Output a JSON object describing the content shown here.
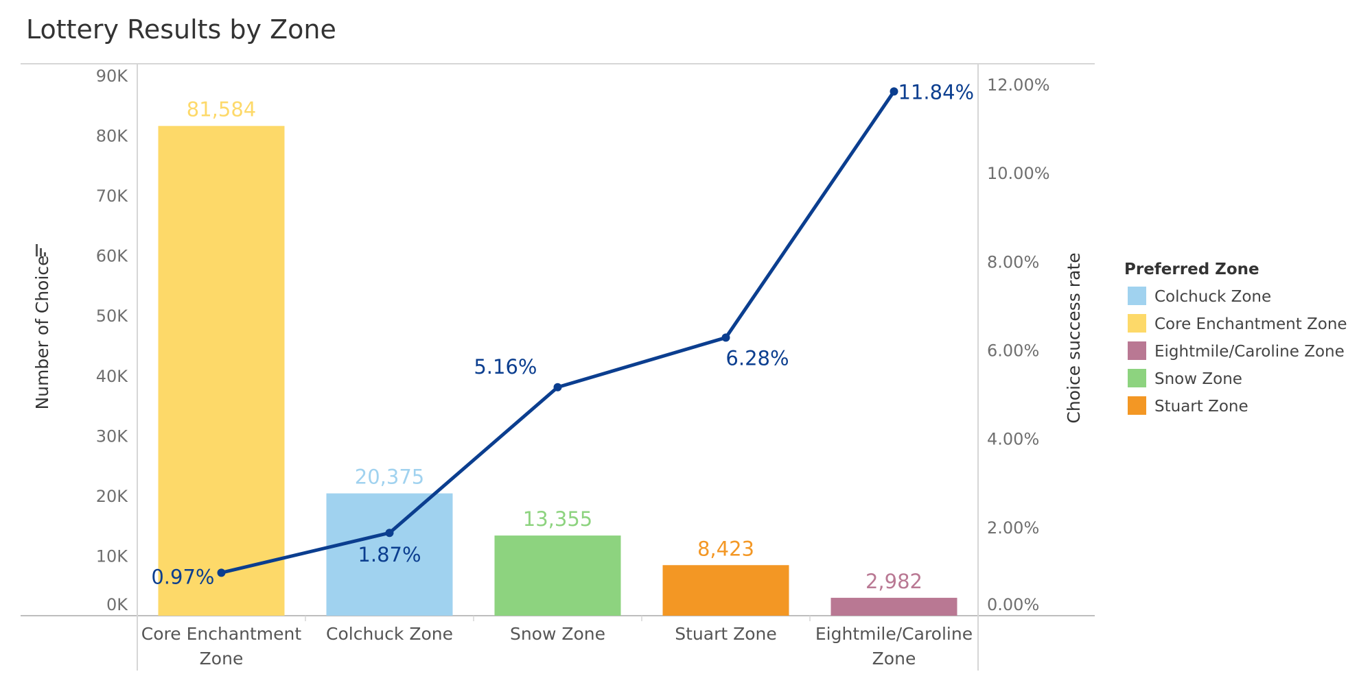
{
  "chart_data": {
    "type": "bar",
    "combo": "bar-line-dual-axis",
    "title": "Lottery Results by Zone",
    "categories": [
      [
        "Core Enchantment",
        "Zone"
      ],
      [
        "Colchuck Zone"
      ],
      [
        "Snow Zone"
      ],
      [
        "Stuart  Zone"
      ],
      [
        "Eightmile/Caroline",
        "Zone"
      ]
    ],
    "bars": {
      "values": [
        81584,
        20375,
        13355,
        8423,
        2982
      ],
      "labels": [
        "81,584",
        "20,375",
        "13,355",
        "8,423",
        "2,982"
      ],
      "colors": [
        "#fdd969",
        "#a0d2ef",
        "#8dd37f",
        "#f39724",
        "#b97893"
      ],
      "ylabel": "Number of Choice",
      "ylim": [
        0,
        90000
      ],
      "ticks": [
        "0K",
        "10K",
        "20K",
        "30K",
        "40K",
        "50K",
        "60K",
        "70K",
        "80K",
        "90K"
      ]
    },
    "line": {
      "values": [
        0.97,
        1.87,
        5.16,
        6.28,
        11.84
      ],
      "labels": [
        "0.97%",
        "1.87%",
        "5.16%",
        "6.28%",
        "11.84%"
      ],
      "color": "#0b3e8f",
      "ylabel": "Choice success rate",
      "ylim": [
        0,
        12
      ],
      "ticks": [
        "0.00%",
        "2.00%",
        "4.00%",
        "6.00%",
        "8.00%",
        "10.00%",
        "12.00%"
      ]
    },
    "legend": {
      "title": "Preferred Zone",
      "position": "right",
      "items": [
        {
          "label": "Colchuck Zone",
          "color": "#a0d2ef"
        },
        {
          "label": "Core Enchantment Zone",
          "color": "#fdd969"
        },
        {
          "label": "Eightmile/Caroline Zone",
          "color": "#b97893"
        },
        {
          "label": "Snow Zone",
          "color": "#8dd37f"
        },
        {
          "label": "Stuart  Zone",
          "color": "#f39724"
        }
      ]
    },
    "grid": false
  }
}
